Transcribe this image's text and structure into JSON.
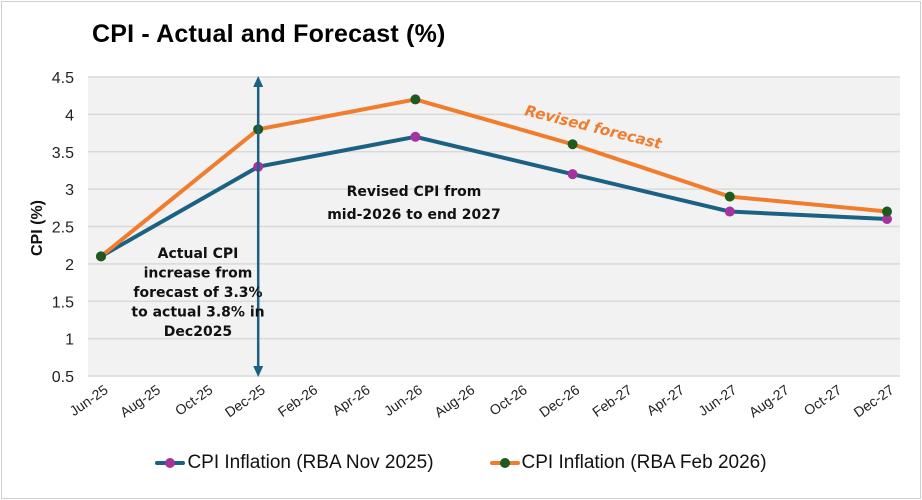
{
  "chart_data": {
    "type": "line",
    "title": "CPI - Actual and Forecast (%)",
    "xlabel": "",
    "ylabel": "CPI (%)",
    "ylim": [
      0.5,
      4.5
    ],
    "yticks": [
      "4.5",
      "4",
      "3.5",
      "3",
      "2.5",
      "2",
      "1.5",
      "1",
      "0.5"
    ],
    "ytick_values": [
      4.5,
      4,
      3.5,
      3,
      2.5,
      2,
      1.5,
      1,
      0.5
    ],
    "x_tick_labels": [
      "Jun-25",
      "Aug-25",
      "Oct-25",
      "Dec-25",
      "Feb-26",
      "Apr-26",
      "Jun-26",
      "Aug-26",
      "Oct-26",
      "Dec-26",
      "Feb-27",
      "Apr-27",
      "Jun-27",
      "Aug-27",
      "Oct-27",
      "Dec-27"
    ],
    "x": [
      "Jun-25",
      "Dec-25",
      "Jun-26",
      "Dec-26",
      "Jun-27",
      "Dec-27"
    ],
    "grid": true,
    "legend_position": "bottom",
    "series": [
      {
        "name": "CPI Inflation (RBA Nov 2025)",
        "values": [
          2.1,
          3.3,
          3.7,
          3.2,
          2.7,
          2.6
        ],
        "line_color": "#1b6184",
        "marker_color": "#a4329f"
      },
      {
        "name": "CPI Inflation (RBA Feb 2026)",
        "values": [
          2.1,
          3.8,
          4.2,
          3.6,
          2.9,
          2.7
        ],
        "line_color": "#f07d2e",
        "marker_color": "#1e5a1e"
      }
    ],
    "annotations": {
      "actual_note": [
        "Actual CPI",
        "increase from",
        "forecast of 3.3%",
        "to actual 3.8% in",
        "Dec2025"
      ],
      "revised_note": [
        "Revised CPI from",
        "mid-2026 to end 2027"
      ],
      "revised_forecast_label": "Revised forecast",
      "arrow_at": "Dec-25",
      "arrow_color": "#1b6184"
    },
    "plot_background": "#f2f2f2",
    "grid_color": "#d9d9d9"
  }
}
